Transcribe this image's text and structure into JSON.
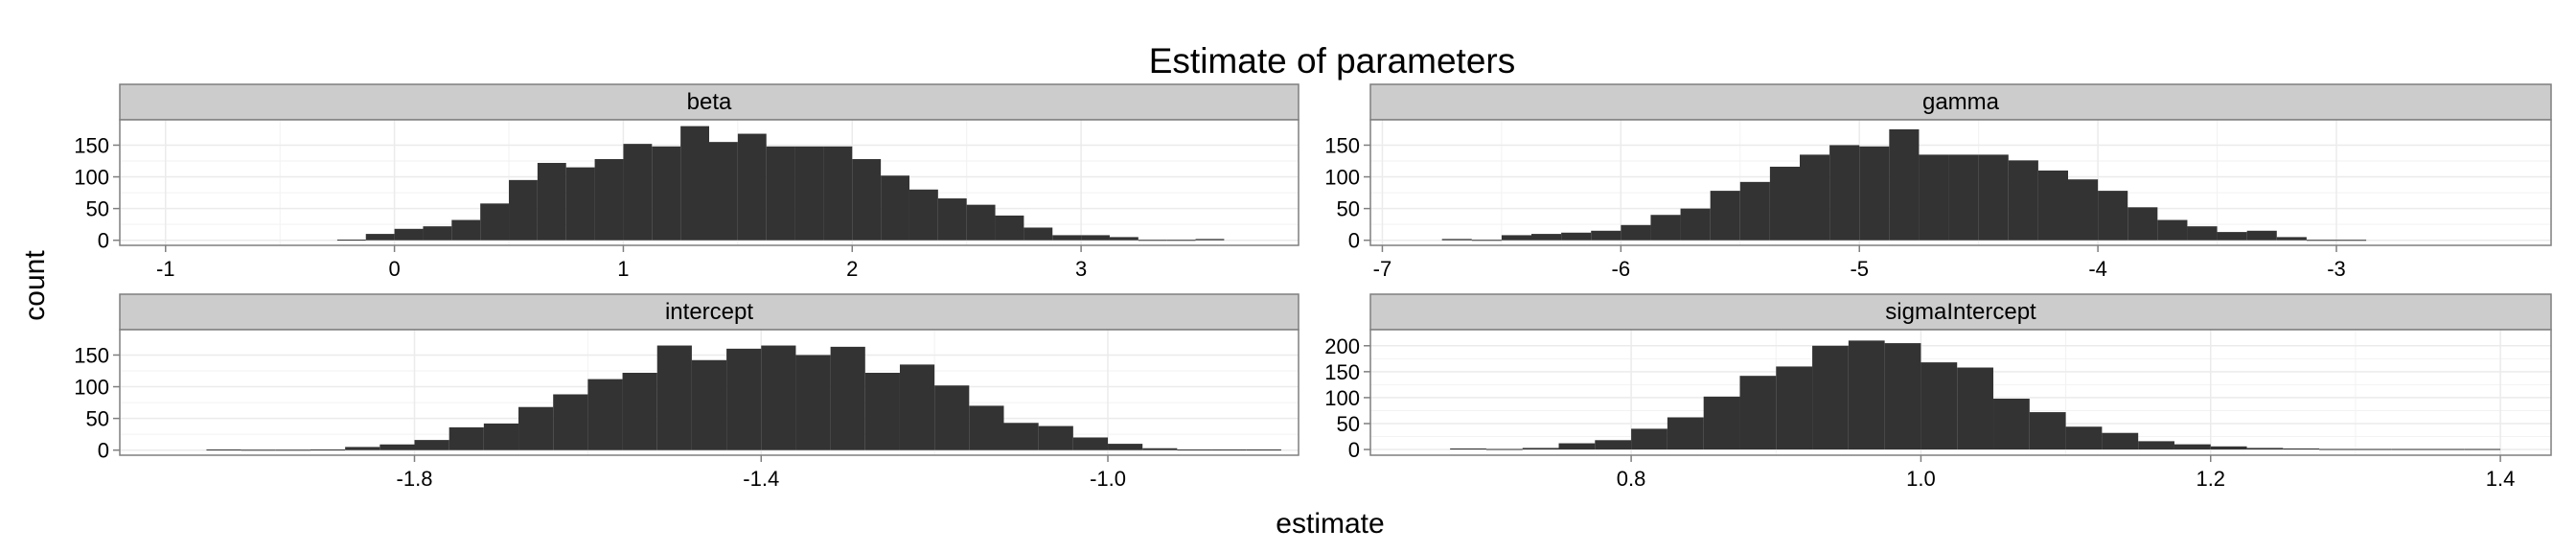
{
  "title": "Estimate of parameters",
  "xlabel": "estimate",
  "ylabel": "count",
  "colors": {
    "bar": "#333333",
    "strip": "#cccccc",
    "panel_border": "#7f7f7f",
    "grid": "#ebebeb"
  },
  "chart_data": [
    {
      "type": "bar",
      "panel": "beta",
      "bin_width": 0.125,
      "bin_starts": [
        -0.25,
        -0.125,
        0,
        0.125,
        0.25,
        0.375,
        0.5,
        0.625,
        0.75,
        0.875,
        1,
        1.125,
        1.25,
        1.375,
        1.5,
        1.625,
        1.75,
        1.875,
        2,
        2.125,
        2.25,
        2.375,
        2.5,
        2.625,
        2.75,
        2.875,
        3,
        3.125,
        3.25,
        3.375,
        3.5
      ],
      "values": [
        1,
        10,
        18,
        22,
        32,
        58,
        95,
        122,
        115,
        128,
        152,
        148,
        180,
        155,
        168,
        148,
        148,
        148,
        128,
        102,
        80,
        66,
        56,
        39,
        20,
        8,
        8,
        5,
        0,
        0,
        2
      ],
      "xlim": [
        -1.2,
        3.95
      ],
      "ylim": [
        -8,
        190
      ],
      "xticks": [
        -1,
        0,
        1,
        2,
        3
      ],
      "yticks": [
        0,
        50,
        100,
        150
      ],
      "grid": true
    },
    {
      "type": "bar",
      "panel": "gamma",
      "bin_width": 0.125,
      "bin_starts": [
        -6.75,
        -6.625,
        -6.5,
        -6.375,
        -6.25,
        -6.125,
        -6,
        -5.875,
        -5.75,
        -5.625,
        -5.5,
        -5.375,
        -5.25,
        -5.125,
        -5,
        -4.875,
        -4.75,
        -4.625,
        -4.5,
        -4.375,
        -4.25,
        -4.125,
        -4,
        -3.875,
        -3.75,
        -3.625,
        -3.5,
        -3.375,
        -3.25,
        -3.125,
        -3
      ],
      "values": [
        2,
        0,
        8,
        10,
        12,
        15,
        24,
        40,
        50,
        78,
        92,
        116,
        135,
        150,
        148,
        175,
        135,
        135,
        135,
        126,
        110,
        96,
        78,
        52,
        32,
        22,
        13,
        15,
        5,
        0,
        0
      ],
      "xlim": [
        -7.05,
        -2.1
      ],
      "ylim": [
        -8,
        190
      ],
      "xticks": [
        -7,
        -6,
        -5,
        -4,
        -3
      ],
      "yticks": [
        0,
        50,
        100,
        150
      ],
      "grid": true
    },
    {
      "type": "bar",
      "panel": "intercept",
      "bin_width": 0.04,
      "bin_starts": [
        -2.04,
        -2,
        -1.96,
        -1.92,
        -1.88,
        -1.84,
        -1.8,
        -1.76,
        -1.72,
        -1.68,
        -1.64,
        -1.6,
        -1.56,
        -1.52,
        -1.48,
        -1.44,
        -1.4,
        -1.36,
        -1.32,
        -1.28,
        -1.24,
        -1.2,
        -1.16,
        -1.12,
        -1.08,
        -1.04,
        -1,
        -0.96,
        -0.92,
        -0.88,
        -0.84
      ],
      "values": [
        1,
        0,
        0,
        1,
        5,
        9,
        16,
        36,
        42,
        68,
        88,
        112,
        122,
        165,
        142,
        160,
        165,
        150,
        163,
        122,
        135,
        102,
        70,
        43,
        38,
        20,
        10,
        3,
        1,
        1,
        1
      ],
      "xlim": [
        -2.14,
        -0.78
      ],
      "ylim": [
        -8,
        190
      ],
      "xticks": [
        -1.8,
        -1.4,
        -1.0
      ],
      "xtick_labels": [
        "-1.8",
        "-1.4",
        "-1.0"
      ],
      "yticks": [
        0,
        50,
        100,
        150
      ],
      "grid": true
    },
    {
      "type": "bar",
      "panel": "sigmaIntercept",
      "bin_width": 0.025,
      "bin_starts": [
        0.675,
        0.7,
        0.725,
        0.75,
        0.775,
        0.8,
        0.825,
        0.85,
        0.875,
        0.9,
        0.925,
        0.95,
        0.975,
        1,
        1.025,
        1.05,
        1.075,
        1.1,
        1.125,
        1.15,
        1.175,
        1.2,
        1.225,
        1.25,
        1.275,
        1.3,
        1.325,
        1.35,
        1.375
      ],
      "values": [
        2,
        0,
        3,
        12,
        18,
        40,
        62,
        102,
        142,
        160,
        200,
        210,
        205,
        168,
        158,
        98,
        72,
        44,
        32,
        16,
        10,
        6,
        3,
        2,
        1,
        1,
        1,
        1,
        1
      ],
      "xlim": [
        0.62,
        1.435
      ],
      "ylim": [
        -11,
        231
      ],
      "xticks": [
        0.8,
        1.0,
        1.2,
        1.4
      ],
      "xtick_labels": [
        "0.8",
        "1.0",
        "1.2",
        "1.4"
      ],
      "yticks": [
        0,
        50,
        100,
        150,
        200
      ],
      "grid": true
    }
  ]
}
